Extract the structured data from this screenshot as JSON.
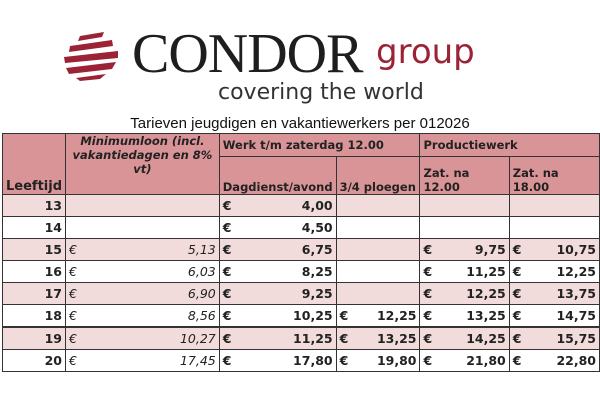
{
  "logo": {
    "brand": "CONDOR",
    "suffix": "group",
    "tagline": "covering the world",
    "colors": {
      "brand": "#1e1e1e",
      "accent": "#9b2335"
    }
  },
  "title": "Tarieven jeugdigen en vakantiewerkers per 012026",
  "table": {
    "headers": {
      "age": "Leeftijd",
      "minimum": "Minimumloon (incl. vakantiedagen en 8% vt)",
      "group_work": "Werk t/m zaterdag 12.00",
      "group_production": "Productiewerk",
      "day": "Dagdienst/avond",
      "shifts": "3/4 ploegen",
      "sat12": "Zat. na 12.00",
      "sat18": "Zat. na 18.00"
    },
    "currency": "€",
    "header_color": "#d99497",
    "stripe_color": "#f2dcdb",
    "rows": [
      {
        "age": "13",
        "minimum": "",
        "day": "4,00",
        "shifts": "",
        "sat12": "",
        "sat18": ""
      },
      {
        "age": "14",
        "minimum": "",
        "day": "4,50",
        "shifts": "",
        "sat12": "",
        "sat18": ""
      },
      {
        "age": "15",
        "minimum": "5,13",
        "day": "6,75",
        "shifts": "",
        "sat12": "9,75",
        "sat18": "10,75"
      },
      {
        "age": "16",
        "minimum": "6,03",
        "day": "8,25",
        "shifts": "",
        "sat12": "11,25",
        "sat18": "12,25"
      },
      {
        "age": "17",
        "minimum": "6,90",
        "day": "9,25",
        "shifts": "",
        "sat12": "12,25",
        "sat18": "13,75"
      },
      {
        "age": "18",
        "minimum": "8,56",
        "day": "10,25",
        "shifts": "12,25",
        "sat12": "13,25",
        "sat18": "14,75"
      },
      {
        "age": "19",
        "minimum": "10,27",
        "day": "11,25",
        "shifts": "13,25",
        "sat12": "14,25",
        "sat18": "15,75"
      },
      {
        "age": "20",
        "minimum": "17,45",
        "day": "17,80",
        "shifts": "19,80",
        "sat12": "21,80",
        "sat18": "22,80"
      }
    ]
  }
}
